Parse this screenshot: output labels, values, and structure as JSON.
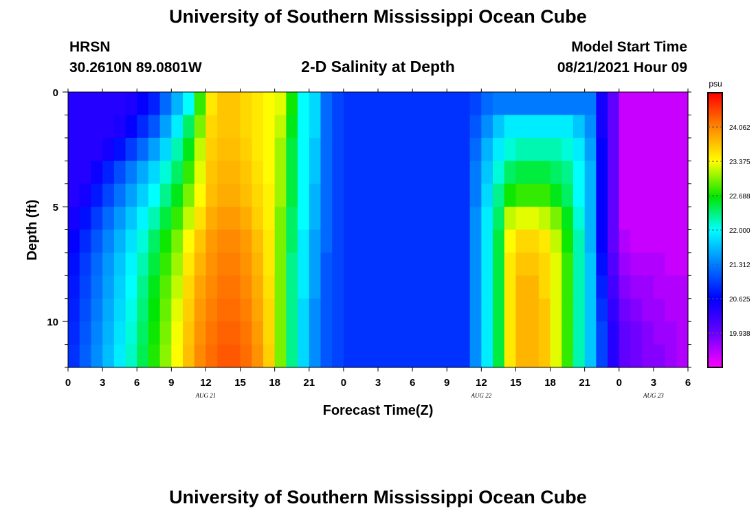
{
  "header": {
    "title": "University of Southern Mississippi Ocean Cube",
    "station": "HRSN",
    "coordinates": "30.2610N  89.0801W",
    "plot_title": "2-D Salinity at Depth",
    "model_label": "Model Start Time",
    "model_time": "08/21/2021 Hour 09"
  },
  "footer": {
    "title": "University of Southern Mississippi Ocean Cube"
  },
  "chart_data": {
    "type": "heatmap",
    "title": "2-D Salinity at Depth",
    "xlabel": "Forecast Time(Z)",
    "ylabel": "Depth (ft)",
    "x_hours": [
      0,
      54
    ],
    "x_tick_labels": [
      "0",
      "3",
      "6",
      "9",
      "12",
      "15",
      "18",
      "21",
      "0",
      "3",
      "6",
      "9",
      "12",
      "15",
      "18",
      "21",
      "0",
      "3",
      "6"
    ],
    "date_labels": [
      {
        "label": "AUG 21",
        "hour": 12
      },
      {
        "label": "AUG 22",
        "hour": 36
      },
      {
        "label": "AUG 23",
        "hour": 51
      }
    ],
    "ylim": [
      0,
      12
    ],
    "y_tick_labels": [
      {
        "value": 0,
        "label": "0"
      },
      {
        "value": 5,
        "label": "5"
      },
      {
        "value": 10,
        "label": "10"
      }
    ],
    "colorbar": {
      "unit": "psu",
      "range": [
        19.25,
        24.75
      ],
      "tick_labels": [
        "24.062",
        "23.375",
        "22.688",
        "22.000",
        "21.312",
        "20.625",
        "19.938"
      ]
    },
    "depth_rows": [
      0,
      1,
      2,
      3,
      4,
      5,
      6,
      7,
      8,
      9,
      10,
      11
    ],
    "time_columns_hours": [
      0,
      1,
      2,
      3,
      4,
      5,
      6,
      7,
      8,
      9,
      10,
      11,
      12,
      13,
      14,
      15,
      16,
      17,
      18,
      19,
      20,
      21,
      22,
      23,
      24,
      25,
      26,
      27,
      28,
      29,
      30,
      31,
      32,
      33,
      34,
      35,
      36,
      37,
      38,
      39,
      40,
      41,
      42,
      43,
      44,
      45,
      46,
      47,
      48,
      49,
      50,
      51,
      52,
      53
    ],
    "salinity_psu": [
      [
        20.4,
        20.4,
        20.4,
        20.4,
        20.4,
        20.45,
        20.6,
        20.8,
        21.2,
        21.6,
        22.0,
        22.8,
        23.5,
        23.7,
        23.7,
        23.6,
        23.5,
        23.4,
        23.3,
        22.7,
        22.0,
        21.8,
        21.2,
        21.0,
        20.9,
        20.9,
        20.9,
        20.9,
        20.9,
        20.9,
        20.9,
        20.9,
        20.9,
        20.9,
        20.9,
        21.0,
        21.2,
        21.3,
        21.3,
        21.3,
        21.3,
        21.3,
        21.3,
        21.3,
        21.3,
        21.3,
        20.5,
        20.0,
        19.5,
        19.5,
        19.5,
        19.5,
        19.5,
        19.5
      ],
      [
        20.4,
        20.4,
        20.4,
        20.4,
        20.45,
        20.6,
        20.85,
        21.1,
        21.5,
        21.9,
        22.4,
        23.0,
        23.6,
        23.7,
        23.7,
        23.6,
        23.5,
        23.4,
        23.2,
        22.6,
        22.0,
        21.8,
        21.2,
        21.0,
        20.9,
        20.9,
        20.9,
        20.9,
        20.9,
        20.9,
        20.9,
        20.9,
        20.9,
        20.9,
        20.9,
        21.1,
        21.4,
        21.7,
        21.9,
        21.9,
        21.9,
        21.9,
        21.9,
        21.9,
        21.7,
        21.4,
        20.5,
        20.0,
        19.5,
        19.5,
        19.5,
        19.5,
        19.5,
        19.5
      ],
      [
        20.4,
        20.4,
        20.4,
        20.5,
        20.7,
        20.95,
        21.2,
        21.5,
        21.8,
        22.2,
        22.6,
        23.2,
        23.65,
        23.75,
        23.75,
        23.65,
        23.5,
        23.4,
        23.1,
        22.5,
        22.0,
        21.7,
        21.2,
        21.0,
        20.9,
        20.9,
        20.9,
        20.9,
        20.9,
        20.9,
        20.9,
        20.9,
        20.9,
        20.9,
        20.9,
        21.2,
        21.6,
        21.9,
        22.1,
        22.2,
        22.2,
        22.2,
        22.2,
        22.1,
        21.9,
        21.5,
        20.6,
        20.0,
        19.5,
        19.5,
        19.5,
        19.5,
        19.5,
        19.5
      ],
      [
        20.4,
        20.4,
        20.55,
        20.8,
        21.05,
        21.3,
        21.55,
        21.8,
        22.1,
        22.4,
        22.8,
        23.3,
        23.7,
        23.8,
        23.8,
        23.7,
        23.55,
        23.4,
        23.1,
        22.5,
        22.0,
        21.7,
        21.2,
        21.0,
        20.9,
        20.9,
        20.9,
        20.9,
        20.9,
        20.9,
        20.9,
        20.9,
        20.9,
        20.9,
        20.9,
        21.3,
        21.7,
        22.1,
        22.4,
        22.5,
        22.5,
        22.5,
        22.4,
        22.3,
        22.0,
        21.6,
        20.6,
        20.0,
        19.5,
        19.5,
        19.5,
        19.5,
        19.5,
        19.5
      ],
      [
        20.4,
        20.5,
        20.75,
        21.0,
        21.25,
        21.5,
        21.75,
        22.0,
        22.3,
        22.6,
        23.0,
        23.4,
        23.75,
        23.85,
        23.85,
        23.75,
        23.6,
        23.45,
        23.1,
        22.5,
        22.0,
        21.6,
        21.2,
        21.0,
        20.9,
        20.9,
        20.9,
        20.9,
        20.9,
        20.9,
        20.9,
        20.9,
        20.9,
        20.9,
        20.9,
        21.3,
        21.8,
        22.3,
        22.7,
        22.8,
        22.8,
        22.8,
        22.6,
        22.4,
        22.0,
        21.6,
        20.6,
        20.0,
        19.5,
        19.5,
        19.5,
        19.5,
        19.5,
        19.5
      ],
      [
        20.5,
        20.7,
        20.95,
        21.2,
        21.45,
        21.7,
        21.95,
        22.2,
        22.5,
        22.8,
        23.2,
        23.55,
        23.85,
        23.95,
        23.95,
        23.85,
        23.65,
        23.45,
        23.0,
        22.4,
        22.0,
        21.6,
        21.2,
        21.0,
        20.9,
        20.9,
        20.9,
        20.9,
        20.9,
        20.9,
        20.9,
        20.9,
        20.9,
        20.9,
        20.9,
        21.4,
        21.9,
        22.4,
        23.2,
        23.3,
        23.3,
        23.2,
        23.0,
        22.6,
        22.1,
        21.6,
        20.6,
        20.0,
        19.5,
        19.5,
        19.5,
        19.5,
        19.5,
        19.5
      ],
      [
        20.6,
        20.85,
        21.1,
        21.35,
        21.6,
        21.85,
        22.1,
        22.4,
        22.7,
        23.0,
        23.4,
        23.7,
        23.95,
        24.05,
        24.05,
        23.95,
        23.75,
        23.5,
        23.0,
        22.4,
        21.9,
        21.5,
        21.2,
        21.0,
        20.9,
        20.9,
        20.9,
        20.9,
        20.9,
        20.9,
        20.9,
        20.9,
        20.9,
        20.9,
        20.9,
        21.4,
        21.9,
        22.5,
        23.4,
        23.6,
        23.6,
        23.5,
        23.2,
        22.7,
        22.2,
        21.6,
        20.6,
        20.0,
        19.6,
        19.5,
        19.5,
        19.5,
        19.5,
        19.5
      ],
      [
        20.7,
        20.95,
        21.2,
        21.45,
        21.7,
        21.95,
        22.2,
        22.5,
        22.8,
        23.1,
        23.5,
        23.8,
        24.0,
        24.1,
        24.1,
        24.0,
        23.8,
        23.5,
        23.0,
        22.3,
        21.9,
        21.5,
        21.1,
        21.0,
        20.9,
        20.9,
        20.9,
        20.9,
        20.9,
        20.9,
        20.9,
        20.9,
        20.9,
        20.9,
        20.9,
        21.4,
        21.9,
        22.5,
        23.5,
        23.7,
        23.7,
        23.6,
        23.3,
        22.8,
        22.2,
        21.7,
        20.7,
        20.1,
        19.7,
        19.6,
        19.6,
        19.6,
        19.5,
        19.5
      ],
      [
        20.75,
        21.0,
        21.25,
        21.5,
        21.75,
        22.0,
        22.3,
        22.6,
        22.9,
        23.2,
        23.6,
        23.9,
        24.05,
        24.15,
        24.15,
        24.05,
        23.85,
        23.55,
        23.0,
        22.3,
        21.9,
        21.5,
        21.1,
        21.0,
        20.9,
        20.9,
        20.9,
        20.9,
        20.9,
        20.9,
        20.9,
        20.9,
        20.9,
        20.9,
        20.9,
        21.4,
        21.9,
        22.5,
        23.5,
        23.8,
        23.8,
        23.6,
        23.3,
        22.8,
        22.2,
        21.7,
        20.8,
        20.2,
        19.8,
        19.7,
        19.7,
        19.6,
        19.6,
        19.6
      ],
      [
        20.8,
        21.05,
        21.3,
        21.55,
        21.8,
        22.05,
        22.35,
        22.65,
        22.95,
        23.3,
        23.65,
        23.95,
        24.1,
        24.2,
        24.2,
        24.1,
        23.9,
        23.6,
        23.0,
        22.3,
        21.8,
        21.4,
        21.1,
        21.0,
        20.9,
        20.9,
        20.9,
        20.9,
        20.9,
        20.9,
        20.9,
        20.9,
        20.9,
        20.9,
        20.9,
        21.4,
        21.9,
        22.5,
        23.5,
        23.8,
        23.8,
        23.7,
        23.3,
        22.8,
        22.2,
        21.7,
        20.9,
        20.3,
        19.9,
        19.8,
        19.7,
        19.7,
        19.6,
        19.6
      ],
      [
        20.85,
        21.1,
        21.35,
        21.6,
        21.85,
        22.1,
        22.4,
        22.7,
        23.0,
        23.35,
        23.7,
        24.0,
        24.15,
        24.25,
        24.25,
        24.15,
        23.95,
        23.6,
        23.0,
        22.3,
        21.8,
        21.4,
        21.1,
        21.0,
        20.9,
        20.9,
        20.9,
        20.9,
        20.9,
        20.9,
        20.9,
        20.9,
        20.9,
        20.9,
        20.9,
        21.4,
        21.9,
        22.5,
        23.5,
        23.8,
        23.8,
        23.7,
        23.3,
        22.8,
        22.2,
        21.7,
        21.0,
        20.4,
        20.0,
        19.9,
        19.8,
        19.7,
        19.7,
        19.6
      ],
      [
        20.9,
        21.15,
        21.4,
        21.65,
        21.9,
        22.15,
        22.45,
        22.75,
        23.05,
        23.4,
        23.75,
        24.05,
        24.2,
        24.3,
        24.3,
        24.2,
        24.0,
        23.65,
        23.0,
        22.3,
        21.8,
        21.4,
        21.1,
        21.0,
        20.9,
        20.9,
        20.9,
        20.9,
        20.9,
        20.9,
        20.9,
        20.9,
        20.9,
        20.9,
        20.9,
        21.4,
        21.9,
        22.5,
        23.5,
        23.8,
        23.8,
        23.7,
        23.3,
        22.8,
        22.2,
        21.7,
        21.0,
        20.4,
        20.0,
        19.9,
        19.8,
        19.8,
        19.7,
        19.6
      ]
    ]
  }
}
